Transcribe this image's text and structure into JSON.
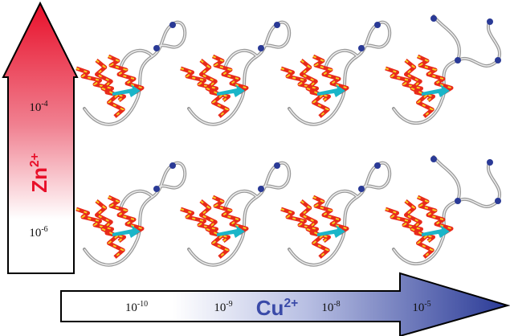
{
  "zn_axis": {
    "ion": {
      "symbol": "Zn",
      "charge": "2+"
    },
    "labels": [
      {
        "base": "10",
        "exp": "-4"
      },
      {
        "base": "10",
        "exp": "-6"
      }
    ]
  },
  "cu_axis": {
    "ion": {
      "symbol": "Cu",
      "charge": "2+"
    },
    "labels": [
      {
        "base": "10",
        "exp": "-10"
      },
      {
        "base": "10",
        "exp": "-9"
      },
      {
        "base": "10",
        "exp": "-8"
      },
      {
        "base": "10",
        "exp": "-5"
      }
    ]
  }
}
